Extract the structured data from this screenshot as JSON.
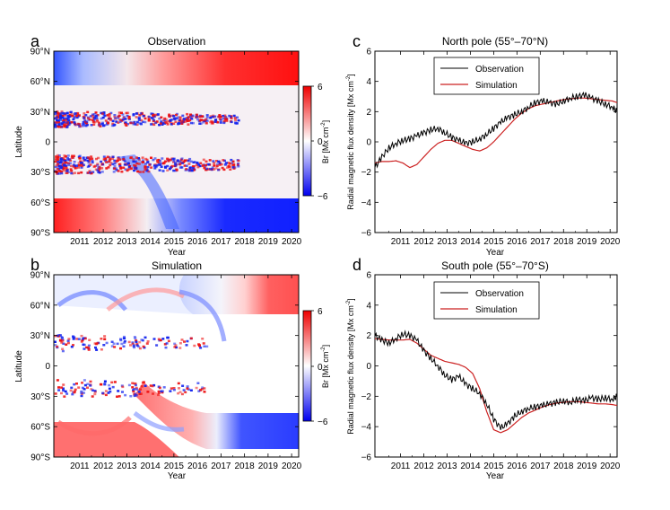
{
  "panels": [
    {
      "letter": "a",
      "title": "Observation",
      "xlabel": "Year",
      "ylabel": "Latitude",
      "x_ticks": [
        "2011",
        "2012",
        "2013",
        "2014",
        "2015",
        "2016",
        "2017",
        "2018",
        "2019",
        "2020"
      ],
      "y_ticks": [
        "90°N",
        "60°N",
        "30°N",
        "0",
        "30°S",
        "60°S",
        "90°S"
      ],
      "colorbar_label": "Br [Mx cm",
      "colorbar_unit_exp": "-2",
      "colorbar_unit_close": "]",
      "colorbar_ticks": [
        "6",
        "0",
        "−6"
      ]
    },
    {
      "letter": "b",
      "title": "Simulation",
      "xlabel": "Year",
      "ylabel": "Latitude",
      "x_ticks": [
        "2011",
        "2012",
        "2013",
        "2014",
        "2015",
        "2016",
        "2017",
        "2018",
        "2019",
        "2020"
      ],
      "y_ticks": [
        "90°N",
        "60°N",
        "30°N",
        "0",
        "30°S",
        "60°S",
        "90°S"
      ],
      "colorbar_label": "Br [Mx cm",
      "colorbar_unit_exp": "-2",
      "colorbar_unit_close": "]",
      "colorbar_ticks": [
        "6",
        "0",
        "−6"
      ]
    },
    {
      "letter": "c",
      "title": "North pole (55°–70°N)",
      "xlabel": "Year",
      "ylabel": "Radial magnetic flux density [Mx cm",
      "ylabel_exp": "-2",
      "ylabel_close": "]",
      "x_ticks": [
        "2011",
        "2012",
        "2013",
        "2014",
        "2015",
        "2016",
        "2017",
        "2018",
        "2019",
        "2020"
      ],
      "y_ticks": [
        "6",
        "4",
        "2",
        "0",
        "−2",
        "−4",
        "−6"
      ],
      "legend": [
        "Observation",
        "Simulation"
      ]
    },
    {
      "letter": "d",
      "title": "South pole (55°–70°S)",
      "xlabel": "Year",
      "ylabel": "Radial magnetic flux density [Mx cm",
      "ylabel_exp": "-2",
      "ylabel_close": "]",
      "x_ticks": [
        "2011",
        "2012",
        "2013",
        "2014",
        "2015",
        "2016",
        "2017",
        "2018",
        "2019",
        "2020"
      ],
      "y_ticks": [
        "6",
        "4",
        "2",
        "0",
        "−2",
        "−4",
        "−6"
      ],
      "legend": [
        "Observation",
        "Simulation"
      ]
    }
  ],
  "colors": {
    "observation": "#000000",
    "simulation": "#cc2222",
    "positive": "#ee0000",
    "negative": "#0000ee"
  },
  "chart_data": [
    {
      "type": "heatmap",
      "title": "Observation",
      "xlabel": "Year",
      "ylabel": "Latitude",
      "xlim": [
        2010.4,
        2020.8
      ],
      "ylim": [
        -90,
        90
      ],
      "clim": [
        -6,
        6
      ],
      "colorbar_label": "Br [Mx cm-2]",
      "description_values": "Positive north polar field after 2014, negative south polar field after 2015, mixed flux at low latitudes"
    },
    {
      "type": "heatmap",
      "title": "Simulation",
      "xlabel": "Year",
      "ylabel": "Latitude",
      "xlim": [
        2010.4,
        2020.8
      ],
      "ylim": [
        -90,
        90
      ],
      "clim": [
        -6,
        6
      ],
      "colorbar_label": "Br [Mx cm-2]"
    },
    {
      "type": "line",
      "title": "North pole (55°–70°N)",
      "xlabel": "Year",
      "ylabel": "Radial magnetic flux density [Mx cm-2]",
      "xlim": [
        2010.4,
        2020.8
      ],
      "ylim": [
        -6,
        6
      ],
      "series": [
        {
          "name": "Observation",
          "x": [
            2010.4,
            2010.7,
            2011.0,
            2011.3,
            2011.6,
            2011.9,
            2012.2,
            2012.5,
            2012.8,
            2013.1,
            2013.4,
            2013.7,
            2014.0,
            2014.3,
            2014.6,
            2014.9,
            2015.2,
            2015.5,
            2015.8,
            2016.1,
            2016.4,
            2016.7,
            2017.0,
            2017.3,
            2017.6,
            2017.9,
            2018.2,
            2018.5,
            2018.8,
            2019.1,
            2019.4,
            2019.7,
            2020.0,
            2020.3,
            2020.6,
            2020.8
          ],
          "y": [
            -1.7,
            -1.0,
            -0.4,
            -0.1,
            0.1,
            0.2,
            0.4,
            0.6,
            0.8,
            0.9,
            0.6,
            0.3,
            0.1,
            -0.1,
            0.0,
            0.2,
            0.5,
            0.9,
            1.3,
            1.6,
            1.8,
            2.0,
            2.3,
            2.6,
            2.7,
            2.6,
            2.5,
            2.7,
            2.9,
            3.0,
            3.1,
            2.9,
            2.7,
            2.5,
            2.3,
            2.0
          ]
        },
        {
          "name": "Simulation",
          "x": [
            2010.4,
            2010.7,
            2011.0,
            2011.3,
            2011.6,
            2011.9,
            2012.2,
            2012.5,
            2012.8,
            2013.1,
            2013.4,
            2013.7,
            2014.0,
            2014.3,
            2014.6,
            2014.9,
            2015.2,
            2015.5,
            2015.8,
            2016.1,
            2016.4,
            2016.7,
            2017.0,
            2017.3,
            2017.6,
            2017.9,
            2018.2,
            2018.5,
            2018.8,
            2019.1,
            2019.4,
            2019.7,
            2020.0,
            2020.3,
            2020.6,
            2020.8
          ],
          "y": [
            -1.4,
            -1.3,
            -1.3,
            -1.25,
            -1.4,
            -1.7,
            -1.5,
            -1.0,
            -0.5,
            -0.1,
            0.1,
            0.1,
            -0.1,
            -0.3,
            -0.5,
            -0.6,
            -0.4,
            0.0,
            0.5,
            1.0,
            1.5,
            1.9,
            2.2,
            2.4,
            2.5,
            2.6,
            2.7,
            2.8,
            2.85,
            2.9,
            2.9,
            2.85,
            2.8,
            2.75,
            2.7,
            2.6
          ]
        }
      ]
    },
    {
      "type": "line",
      "title": "South pole (55°–70°S)",
      "xlabel": "Year",
      "ylabel": "Radial magnetic flux density [Mx cm-2]",
      "xlim": [
        2010.4,
        2020.8
      ],
      "ylim": [
        -6,
        6
      ],
      "series": [
        {
          "name": "Observation",
          "x": [
            2010.4,
            2010.7,
            2011.0,
            2011.3,
            2011.6,
            2011.9,
            2012.2,
            2012.5,
            2012.8,
            2013.1,
            2013.4,
            2013.7,
            2014.0,
            2014.3,
            2014.6,
            2014.9,
            2015.2,
            2015.5,
            2015.8,
            2016.1,
            2016.4,
            2016.7,
            2017.0,
            2017.3,
            2017.6,
            2017.9,
            2018.2,
            2018.5,
            2018.8,
            2019.1,
            2019.4,
            2019.7,
            2020.0,
            2020.3,
            2020.6,
            2020.8
          ],
          "y": [
            2.0,
            1.7,
            1.5,
            1.8,
            2.1,
            2.0,
            1.7,
            1.0,
            0.5,
            0.0,
            -0.6,
            -0.9,
            -0.7,
            -1.2,
            -1.5,
            -1.8,
            -2.5,
            -3.5,
            -4.1,
            -3.8,
            -3.3,
            -3.0,
            -2.8,
            -2.7,
            -2.6,
            -2.5,
            -2.4,
            -2.3,
            -2.4,
            -2.2,
            -2.3,
            -2.1,
            -2.2,
            -2.1,
            -2.2,
            -2.0
          ]
        },
        {
          "name": "Simulation",
          "x": [
            2010.4,
            2010.7,
            2011.0,
            2011.3,
            2011.6,
            2011.9,
            2012.2,
            2012.5,
            2012.8,
            2013.1,
            2013.4,
            2013.7,
            2014.0,
            2014.3,
            2014.6,
            2014.9,
            2015.2,
            2015.5,
            2015.8,
            2016.1,
            2016.4,
            2016.7,
            2017.0,
            2017.3,
            2017.6,
            2017.9,
            2018.2,
            2018.5,
            2018.8,
            2019.1,
            2019.4,
            2019.7,
            2020.0,
            2020.3,
            2020.6,
            2020.8
          ],
          "y": [
            1.8,
            1.75,
            1.7,
            1.7,
            1.7,
            1.75,
            1.5,
            1.1,
            0.7,
            0.5,
            0.3,
            0.2,
            0.1,
            -0.1,
            -0.5,
            -1.5,
            -3.0,
            -4.2,
            -4.4,
            -4.2,
            -3.8,
            -3.4,
            -3.1,
            -2.9,
            -2.7,
            -2.55,
            -2.45,
            -2.4,
            -2.35,
            -2.35,
            -2.4,
            -2.45,
            -2.5,
            -2.5,
            -2.55,
            -2.6
          ]
        }
      ]
    }
  ]
}
